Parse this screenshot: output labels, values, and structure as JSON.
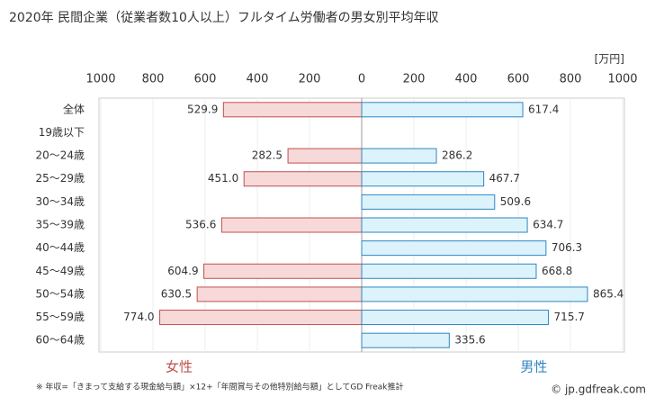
{
  "chart_data": {
    "type": "butterfly-bar",
    "title": "2020年 民間企業（従業者数10人以上）フルタイム労働者の男女別平均年収",
    "unit_label": "[万円]",
    "categories": [
      "全体",
      "19歳以下",
      "20〜24歳",
      "25〜29歳",
      "30〜34歳",
      "35〜39歳",
      "40〜44歳",
      "45〜49歳",
      "50〜54歳",
      "55〜59歳",
      "60〜64歳"
    ],
    "series": [
      {
        "name": "女性",
        "color": "#c0504d",
        "fill": "#f7d9d9",
        "side": "left",
        "values": [
          529.9,
          null,
          282.5,
          451.0,
          null,
          536.6,
          null,
          604.9,
          630.5,
          774.0,
          null
        ],
        "value_labels": [
          "529.9",
          null,
          "282.5",
          "451.0",
          null,
          "536.6",
          null,
          "604.9",
          "630.5",
          "774.0",
          null
        ]
      },
      {
        "name": "男性",
        "color": "#2e86c1",
        "fill": "#dcf3fc",
        "side": "right",
        "values": [
          617.4,
          null,
          286.2,
          467.7,
          509.6,
          634.7,
          706.3,
          668.8,
          865.4,
          715.7,
          335.6
        ],
        "value_labels": [
          "617.4",
          null,
          "286.2",
          "467.7",
          "509.6",
          "634.7",
          "706.3",
          "668.8",
          "865.4",
          "715.7",
          "335.6"
        ]
      }
    ],
    "xlim": [
      0,
      1000
    ],
    "xticks": [
      0,
      200,
      400,
      600,
      800,
      1000
    ],
    "grid": true,
    "footnote": "※ 年収=「きまって支給する現金給与額」×12+「年間賞与その他特別給与額」としてGD Freak推計",
    "credit": "© jp.gdfreak.com"
  }
}
